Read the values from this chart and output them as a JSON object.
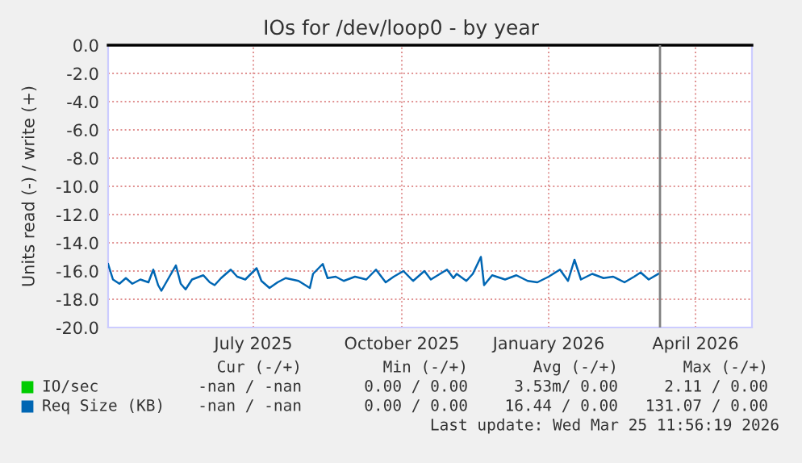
{
  "chart_data": {
    "type": "line",
    "title": "IOs for /dev/loop0 - by year",
    "ylabel": "Units read (-) / write (+)",
    "xlim": [
      "2025-04-17",
      "2026-05-21"
    ],
    "xticks": [
      {
        "value": "2025-07-16",
        "label": "July 2025"
      },
      {
        "value": "2025-10-16",
        "label": "October 2025"
      },
      {
        "value": "2026-01-15",
        "label": "January 2026"
      },
      {
        "value": "2026-04-16",
        "label": "April 2026"
      }
    ],
    "ylim": [
      -20,
      0
    ],
    "yticks": [
      {
        "value": -20,
        "label": "-20.0"
      },
      {
        "value": -18,
        "label": "-18.0"
      },
      {
        "value": -16,
        "label": "-16.0"
      },
      {
        "value": -14,
        "label": "-14.0"
      },
      {
        "value": -12,
        "label": "-12.0"
      },
      {
        "value": -10,
        "label": "-10.0"
      },
      {
        "value": -8,
        "label": "-8.0"
      },
      {
        "value": -6,
        "label": "-6.0"
      },
      {
        "value": -4,
        "label": "-4.0"
      },
      {
        "value": -2,
        "label": "-2.0"
      },
      {
        "value": 0,
        "label": "0.0"
      }
    ],
    "grid": true,
    "legend": "bottom",
    "ref_lines": [
      {
        "axis": "x",
        "value": "2026-03-25",
        "color": "#808080"
      }
    ],
    "series": [
      {
        "name": "IO/sec",
        "color": "#00cc00"
      },
      {
        "name": "Req Size (KB)",
        "color": "#0066b3",
        "x": [
          "2025-04-17",
          "2025-04-20",
          "2025-04-24",
          "2025-04-28",
          "2025-05-02",
          "2025-05-07",
          "2025-05-12",
          "2025-05-15",
          "2025-05-18",
          "2025-05-20",
          "2025-05-24",
          "2025-05-29",
          "2025-06-01",
          "2025-06-04",
          "2025-06-08",
          "2025-06-15",
          "2025-06-19",
          "2025-06-22",
          "2025-06-26",
          "2025-07-02",
          "2025-07-06",
          "2025-07-11",
          "2025-07-18",
          "2025-07-21",
          "2025-07-26",
          "2025-07-31",
          "2025-08-05",
          "2025-08-13",
          "2025-08-20",
          "2025-08-22",
          "2025-08-28",
          "2025-08-31",
          "2025-09-05",
          "2025-09-10",
          "2025-09-17",
          "2025-09-24",
          "2025-09-30",
          "2025-10-06",
          "2025-10-11",
          "2025-10-17",
          "2025-10-23",
          "2025-10-30",
          "2025-11-03",
          "2025-11-13",
          "2025-11-17",
          "2025-11-19",
          "2025-11-25",
          "2025-11-29",
          "2025-12-04",
          "2025-12-06",
          "2025-12-11",
          "2025-12-19",
          "2025-12-26",
          "2026-01-02",
          "2026-01-08",
          "2026-01-15",
          "2026-01-22",
          "2026-01-27",
          "2026-01-31",
          "2026-02-04",
          "2026-02-11",
          "2026-02-18",
          "2026-02-24",
          "2026-03-03",
          "2026-03-09",
          "2026-03-13",
          "2026-03-18",
          "2026-03-24"
        ],
        "values": [
          -15.5,
          -16.6,
          -16.9,
          -16.5,
          -16.9,
          -16.6,
          -16.8,
          -15.9,
          -17.0,
          -17.4,
          -16.6,
          -15.6,
          -16.9,
          -17.3,
          -16.6,
          -16.3,
          -16.8,
          -17.0,
          -16.5,
          -15.9,
          -16.4,
          -16.6,
          -15.8,
          -16.7,
          -17.2,
          -16.8,
          -16.5,
          -16.7,
          -17.2,
          -16.2,
          -15.5,
          -16.5,
          -16.4,
          -16.7,
          -16.4,
          -16.6,
          -15.9,
          -16.8,
          -16.4,
          -16.0,
          -16.7,
          -16.0,
          -16.6,
          -15.9,
          -16.5,
          -16.2,
          -16.7,
          -16.2,
          -15.0,
          -17.0,
          -16.3,
          -16.6,
          -16.3,
          -16.7,
          -16.8,
          -16.4,
          -15.9,
          -16.7,
          -15.2,
          -16.6,
          -16.2,
          -16.5,
          -16.4,
          -16.8,
          -16.4,
          -16.1,
          -16.6,
          -16.2
        ]
      }
    ],
    "annotations": [
      "Cur (-/+)",
      "Min (-/+)",
      "Avg (-/+)",
      "Max (-/+)",
      "-nan / -nan",
      "0.00 / 0.00",
      "3.53m/ 0.00",
      "2.11 / 0.00",
      "-nan / -nan",
      "0.00 / 0.00",
      "16.44 / 0.00",
      "131.07 / 0.00",
      "Last update: Wed Mar 25 11:56:19 2026"
    ]
  }
}
